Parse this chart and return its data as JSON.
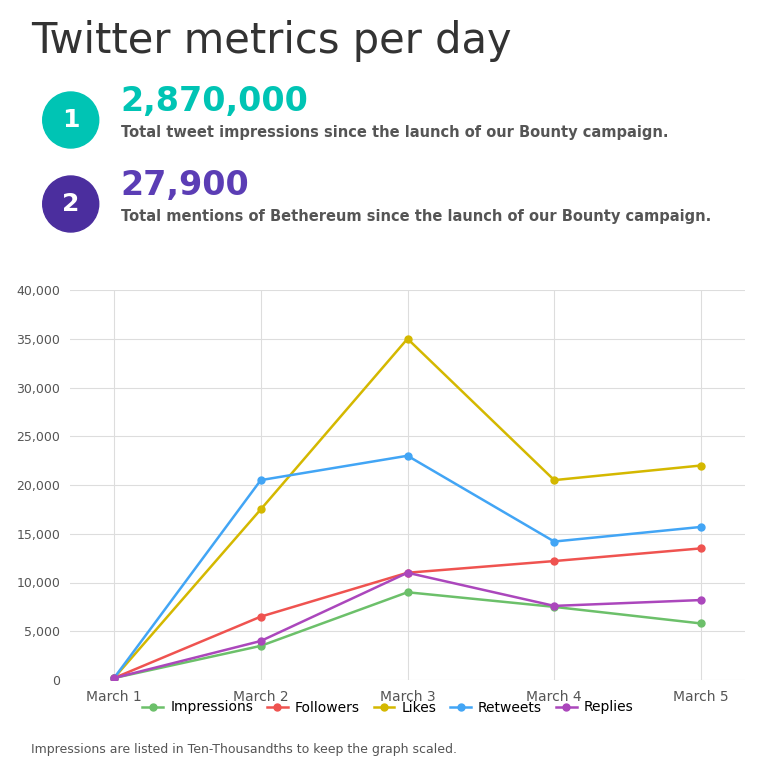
{
  "title": "Twitter metrics per day",
  "stat1_circle_color": "#00C4B4",
  "stat1_number": "2,870,000",
  "stat1_number_color": "#00C4B4",
  "stat1_desc": "Total tweet impressions since the launch of our Bounty campaign.",
  "stat2_circle_color": "#4B2E9E",
  "stat2_number": "27,900",
  "stat2_number_color": "#5B3DB5",
  "stat2_desc": "Total mentions of Bethereum since the launch of our Bounty campaign.",
  "x_labels": [
    "March 1",
    "March 2",
    "March 3",
    "March 4",
    "March 5"
  ],
  "series": [
    {
      "name": "Impressions",
      "color": "#6CC06A",
      "data": [
        200,
        3500,
        9000,
        7500,
        5800
      ]
    },
    {
      "name": "Followers",
      "color": "#EF5350",
      "data": [
        200,
        6500,
        11000,
        12200,
        13500
      ]
    },
    {
      "name": "Likes",
      "color": "#D4B800",
      "data": [
        200,
        17500,
        35000,
        20500,
        22000
      ]
    },
    {
      "name": "Retweets",
      "color": "#42A5F5",
      "data": [
        200,
        20500,
        23000,
        14200,
        15700
      ]
    },
    {
      "name": "Replies",
      "color": "#AB47BC",
      "data": [
        200,
        4000,
        11000,
        7600,
        8200
      ]
    }
  ],
  "ylim": [
    0,
    40000
  ],
  "yticks": [
    0,
    5000,
    10000,
    15000,
    20000,
    25000,
    30000,
    35000,
    40000
  ],
  "footer_note": "Impressions are listed in Ten-Thousandths to keep the graph scaled.",
  "bg_color": "#ffffff",
  "text_color": "#555555",
  "title_color": "#333333",
  "grid_color": "#dddddd",
  "divider_color": "#cccccc"
}
